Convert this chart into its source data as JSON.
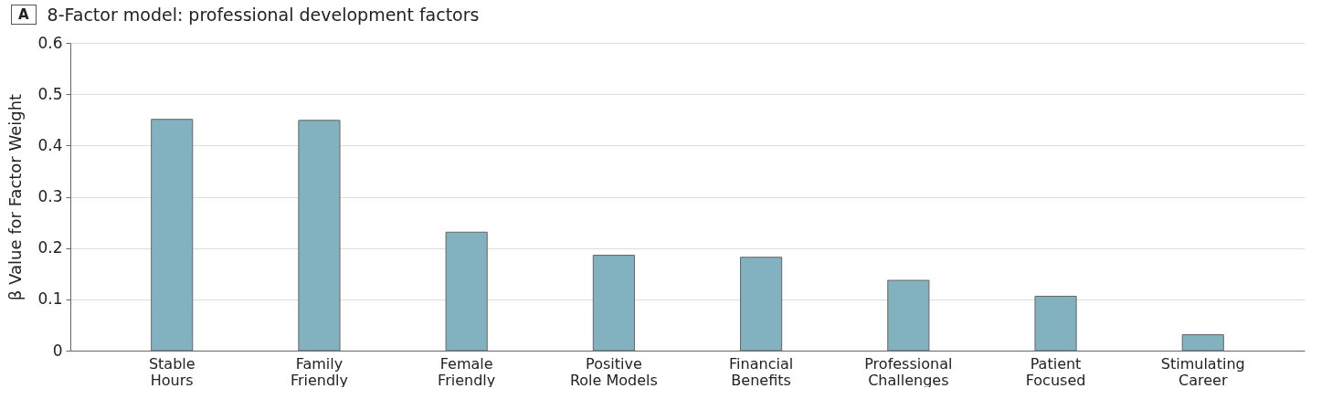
{
  "chart_data": {
    "type": "bar",
    "title": "8-Factor model: professional development factors",
    "annotations": [
      "A"
    ],
    "ylabel": "β Value for Factor Weight",
    "categories": [
      "Stable Hours",
      "Family Friendly",
      "Female Friendly",
      "Positive Role Models",
      "Financial Benefits",
      "Professional Challenges",
      "Patient Focused",
      "Stimulating Career"
    ],
    "values": [
      0.451,
      0.449,
      0.231,
      0.186,
      0.182,
      0.137,
      0.106,
      0.031
    ],
    "color": "#82b1c0",
    "ylim": [
      0,
      0.6
    ],
    "yticks": [
      {
        "value": 0,
        "label": "0"
      },
      0.1,
      0.2,
      0.3,
      0.4,
      0.5,
      0.6
    ],
    "grid": "y"
  }
}
